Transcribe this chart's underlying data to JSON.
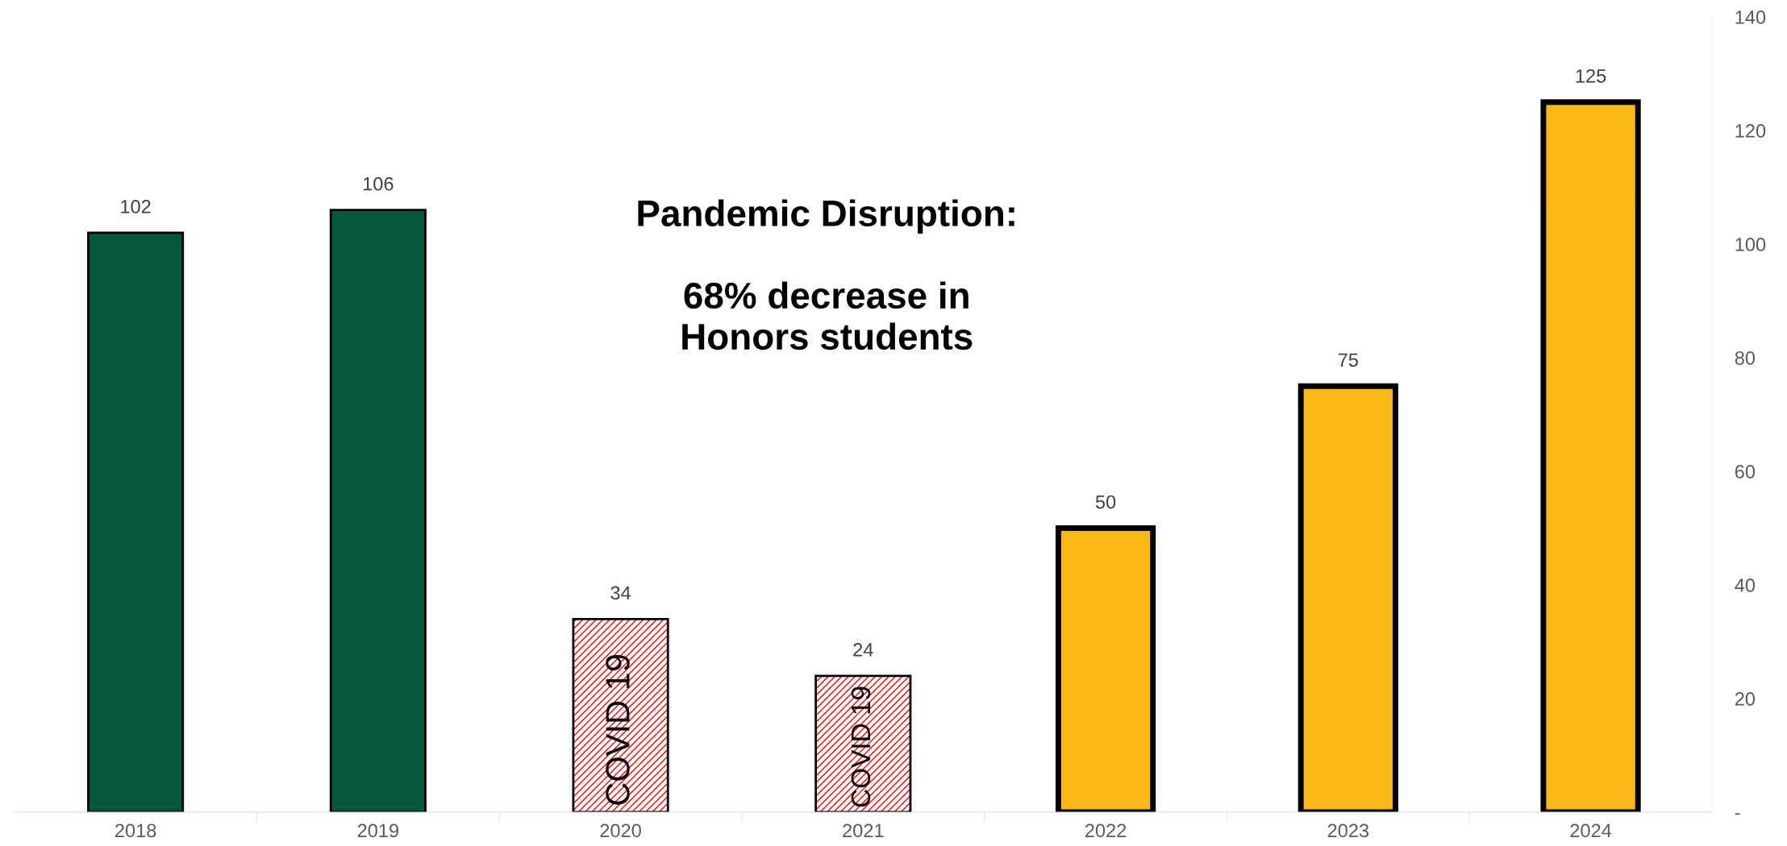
{
  "chart_data": {
    "type": "bar",
    "categories": [
      "2018",
      "2019",
      "2020",
      "2021",
      "2022",
      "2023",
      "2024"
    ],
    "values": [
      102,
      106,
      34,
      24,
      50,
      75,
      125
    ],
    "colors": [
      "#03573a",
      "#03573a",
      "#ff0000",
      "#ff0000",
      "#fbb918",
      "#fbb918",
      "#fbb918"
    ],
    "ylim": [
      0,
      140
    ],
    "yticks": [
      {
        "value": 0,
        "label": "-"
      },
      20,
      40,
      60,
      80,
      100,
      120,
      140
    ],
    "data_labels": true,
    "grid": false,
    "annotations": [
      "Pandemic Disruption:\n\n68% decrease in\nHonors students",
      "COVID 19",
      "COVID 19"
    ]
  }
}
